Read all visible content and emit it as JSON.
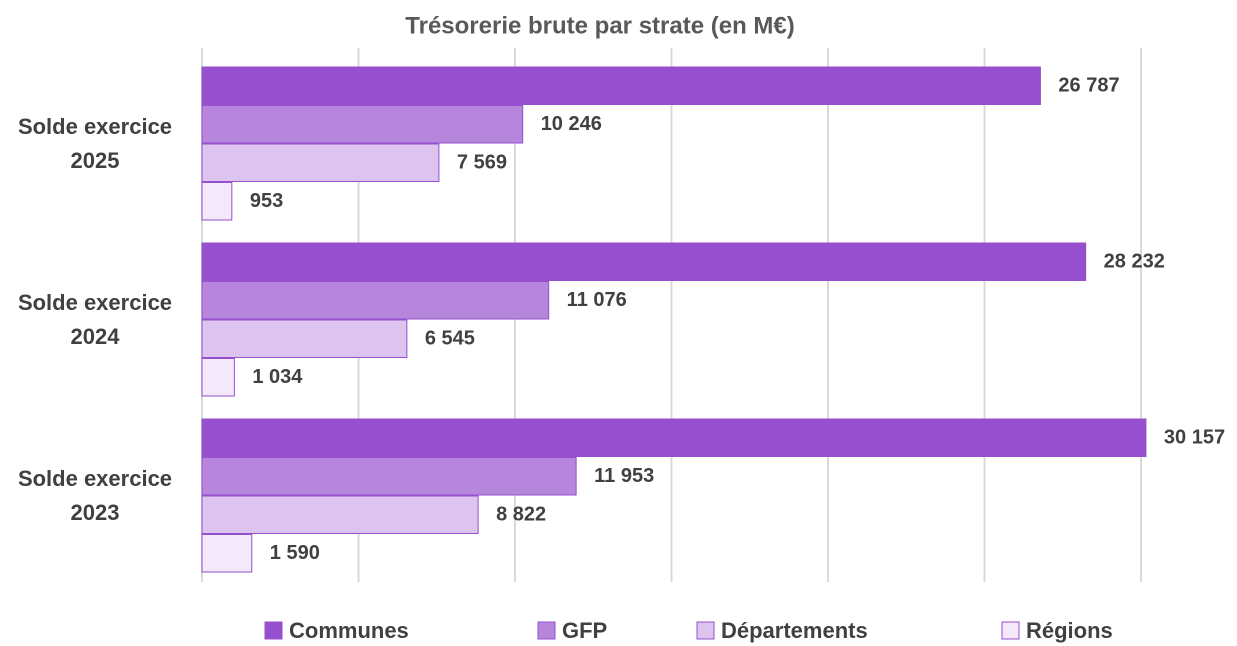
{
  "chart_data": {
    "type": "bar",
    "orientation": "horizontal",
    "title": "Trésorerie brute par strate (en M€)",
    "categories": [
      "Solde exercice 2025",
      "Solde exercice 2024",
      "Solde exercice 2023"
    ],
    "series": [
      {
        "name": "Communes",
        "color": "#9650cd",
        "values": [
          26787,
          28232,
          30157
        ],
        "value_labels": [
          "26 787",
          "28 232",
          "30 157"
        ]
      },
      {
        "name": "GFP",
        "color": "#b586dc",
        "values": [
          10246,
          11076,
          11953
        ],
        "value_labels": [
          "10 246",
          "11 076",
          "11 953"
        ]
      },
      {
        "name": "Départements",
        "color": "#dcc4ee",
        "values": [
          7569,
          6545,
          8822
        ],
        "value_labels": [
          "7 569",
          "6 545",
          "8 822"
        ]
      },
      {
        "name": "Régions",
        "color": "#f4e9fa",
        "values": [
          953,
          1034,
          1590
        ],
        "value_labels": [
          "953",
          "1 034",
          "1 590"
        ]
      }
    ],
    "xlim": [
      0,
      30000
    ],
    "xticks": [
      0,
      5000,
      10000,
      15000,
      20000,
      25000,
      30000
    ],
    "grid": true,
    "legend": "bottom"
  }
}
